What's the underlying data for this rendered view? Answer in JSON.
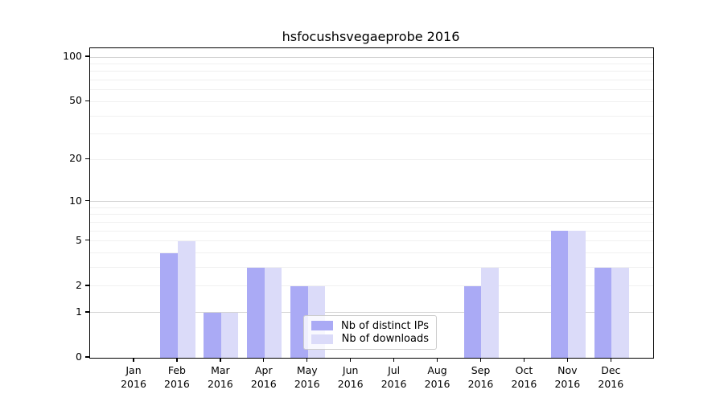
{
  "chart_data": {
    "type": "bar",
    "title": "hsfocushsvegaeprobe 2016",
    "months": [
      "Jan",
      "Feb",
      "Mar",
      "Apr",
      "May",
      "Jun",
      "Jul",
      "Aug",
      "Sep",
      "Oct",
      "Nov",
      "Dec"
    ],
    "year": "2016",
    "series": [
      {
        "name": "Nb of distinct IPs",
        "color": "#aaaaf5",
        "values": [
          0,
          4,
          1,
          3,
          2,
          0,
          0,
          0,
          2,
          0,
          6,
          3
        ]
      },
      {
        "name": "Nb of downloads",
        "color": "#dbdbf9",
        "values": [
          0,
          5,
          1,
          3,
          2,
          0,
          0,
          0,
          3,
          0,
          6,
          3
        ]
      }
    ],
    "y_axis": {
      "scale": "log1p",
      "tick_values": [
        0,
        1,
        2,
        5,
        10,
        20,
        50,
        100
      ],
      "tick_labels": [
        "0",
        "1",
        "2",
        "5",
        "10",
        "20",
        "50",
        "100"
      ],
      "max_tick": 100
    },
    "grid": {
      "major_values": [
        1,
        10,
        100
      ],
      "minor_values": [
        2,
        3,
        4,
        5,
        6,
        7,
        8,
        9,
        20,
        30,
        40,
        50,
        60,
        70,
        80,
        90
      ],
      "major_color": "#d4d4d4",
      "minor_color": "#f0f0f0"
    },
    "legend": {
      "position": "lower-center"
    },
    "colors": {
      "spine": "#000000",
      "text": "#000000",
      "background": "#ffffff",
      "legend_border": "#cccccc"
    }
  }
}
